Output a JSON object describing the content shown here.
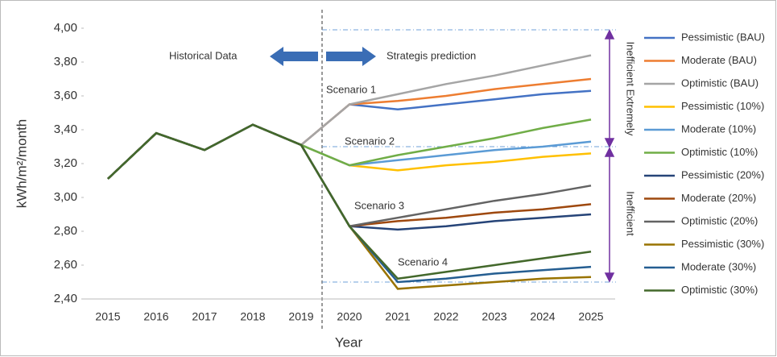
{
  "chart_data": {
    "type": "line",
    "y_label": "kWh/m²/month",
    "x_label": "Year",
    "categories": [
      "2015",
      "2016",
      "2017",
      "2018",
      "2019",
      "2020",
      "2021",
      "2022",
      "2023",
      "2024",
      "2025"
    ],
    "ylim": [
      2.4,
      4.0
    ],
    "yticks": [
      {
        "value": 2.4,
        "label": "2,40"
      },
      {
        "value": 2.6,
        "label": "2,60"
      },
      {
        "value": 2.8,
        "label": "2,80"
      },
      {
        "value": 3.0,
        "label": "3,00"
      },
      {
        "value": 3.2,
        "label": "3,20"
      },
      {
        "value": 3.4,
        "label": "3,40"
      },
      {
        "value": 3.6,
        "label": "3,60"
      },
      {
        "value": 3.8,
        "label": "3,80"
      },
      {
        "value": 4.0,
        "label": "4,00"
      }
    ],
    "annotations": [
      "Historical Data",
      "Strategis prediction",
      "Scenario 1",
      "Scenario 2",
      "Scenario 3",
      "Scenario 4",
      "Inefficient Extremely",
      "Inefficient"
    ],
    "series": [
      {
        "name": "Pessimistic (BAU)",
        "color": "#4472c4",
        "values": [
          3.11,
          3.38,
          3.28,
          3.43,
          3.31,
          3.55,
          3.52,
          3.55,
          3.58,
          3.61,
          3.63
        ]
      },
      {
        "name": "Moderate (BAU)",
        "color": "#ed7d31",
        "values": [
          3.11,
          3.38,
          3.28,
          3.43,
          3.31,
          3.55,
          3.57,
          3.6,
          3.64,
          3.67,
          3.7
        ]
      },
      {
        "name": "Optimistic (BAU)",
        "color": "#a5a5a5",
        "values": [
          3.11,
          3.38,
          3.28,
          3.43,
          3.31,
          3.55,
          3.61,
          3.67,
          3.72,
          3.78,
          3.84
        ]
      },
      {
        "name": "Pessimistic (10%)",
        "color": "#ffc000",
        "values": [
          3.11,
          3.38,
          3.28,
          3.43,
          3.31,
          3.19,
          3.16,
          3.19,
          3.21,
          3.24,
          3.26
        ]
      },
      {
        "name": "Moderate (10%)",
        "color": "#5b9bd5",
        "values": [
          3.11,
          3.38,
          3.28,
          3.43,
          3.31,
          3.19,
          3.22,
          3.25,
          3.28,
          3.3,
          3.33
        ]
      },
      {
        "name": "Optimistic (10%)",
        "color": "#70ad47",
        "values": [
          3.11,
          3.38,
          3.28,
          3.43,
          3.31,
          3.19,
          3.25,
          3.3,
          3.35,
          3.41,
          3.46
        ]
      },
      {
        "name": "Pessimistic (20%)",
        "color": "#264478",
        "values": [
          3.11,
          3.38,
          3.28,
          3.43,
          3.31,
          2.83,
          2.81,
          2.83,
          2.86,
          2.88,
          2.9
        ]
      },
      {
        "name": "Moderate (20%)",
        "color": "#9e480e",
        "values": [
          3.11,
          3.38,
          3.28,
          3.43,
          3.31,
          2.83,
          2.86,
          2.88,
          2.91,
          2.93,
          2.96
        ]
      },
      {
        "name": "Optimistic (20%)",
        "color": "#636363",
        "values": [
          3.11,
          3.38,
          3.28,
          3.43,
          3.31,
          2.83,
          2.88,
          2.93,
          2.98,
          3.02,
          3.07
        ]
      },
      {
        "name": "Pessimistic (30%)",
        "color": "#997300",
        "values": [
          3.11,
          3.38,
          3.28,
          3.43,
          3.31,
          2.83,
          2.46,
          2.48,
          2.5,
          2.52,
          2.53
        ]
      },
      {
        "name": "Moderate (30%)",
        "color": "#255e91",
        "values": [
          3.11,
          3.38,
          3.28,
          3.43,
          3.31,
          2.83,
          2.5,
          2.52,
          2.55,
          2.57,
          2.59
        ]
      },
      {
        "name": "Optimistic (30%)",
        "color": "#43682b",
        "values": [
          3.11,
          3.38,
          3.28,
          3.43,
          3.31,
          2.83,
          2.52,
          2.56,
          2.6,
          2.64,
          2.68
        ]
      }
    ]
  }
}
